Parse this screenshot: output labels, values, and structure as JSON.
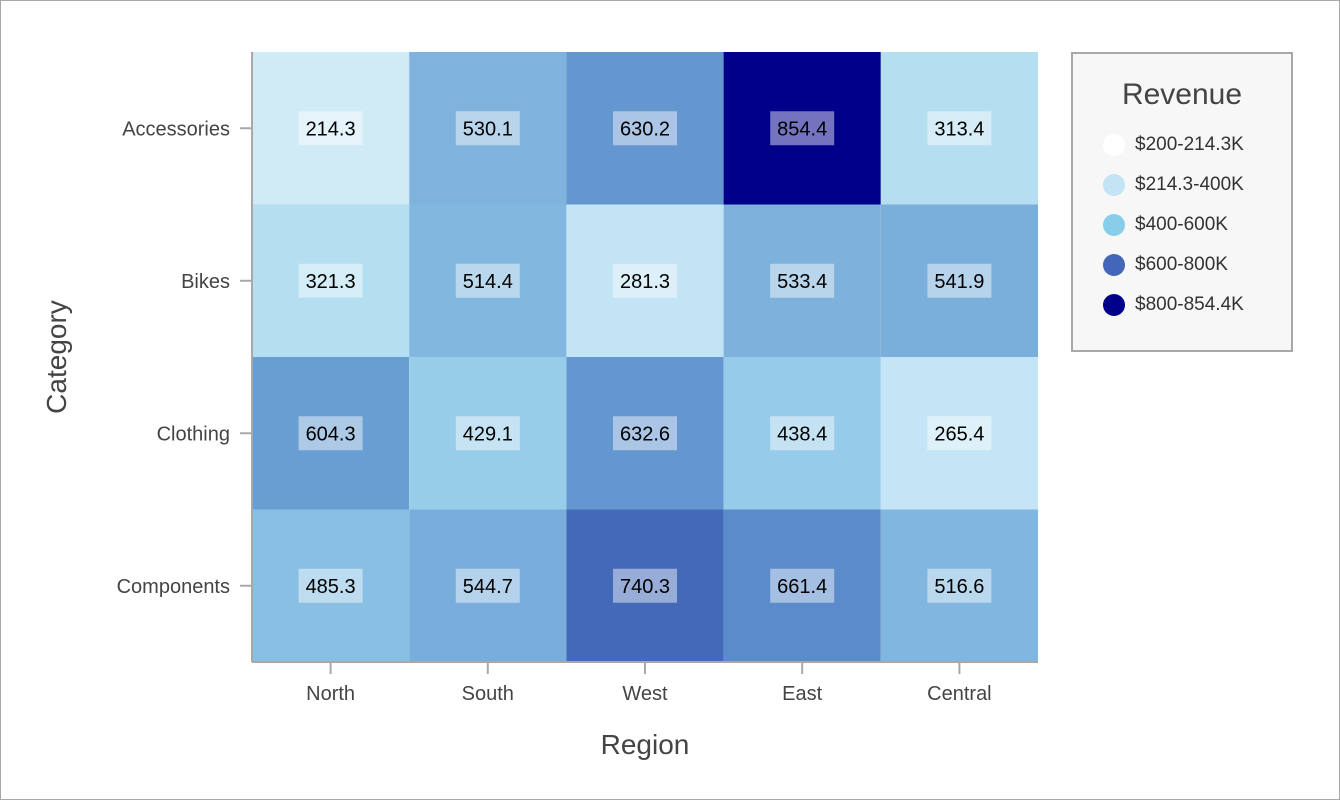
{
  "chart_data": {
    "type": "heatmap",
    "xlabel": "Region",
    "ylabel": "Category",
    "x_categories": [
      "North",
      "South",
      "West",
      "East",
      "Central"
    ],
    "y_categories": [
      "Accessories",
      "Bikes",
      "Clothing",
      "Components"
    ],
    "values": [
      [
        214.3,
        530.1,
        630.2,
        854.4,
        313.4
      ],
      [
        321.3,
        514.4,
        281.3,
        533.4,
        541.9
      ],
      [
        604.3,
        429.1,
        632.6,
        438.4,
        265.4
      ],
      [
        485.3,
        544.7,
        740.3,
        661.4,
        516.6
      ]
    ],
    "cell_colors": [
      [
        "#d0eaf6",
        "#7fb3dd",
        "#6496cf",
        "#00008b",
        "#b5dff0"
      ],
      [
        "#b3dff1",
        "#82b8df",
        "#c2e4f4",
        "#7eb2dc",
        "#7aafdc"
      ],
      [
        "#689ed2",
        "#98cde9",
        "#6496cf",
        "#96cbe9",
        "#c4e5f5"
      ],
      [
        "#88bfe3",
        "#79aedc",
        "#4469b9",
        "#5b8bca",
        "#80b6df"
      ]
    ],
    "legend": {
      "title": "Revenue",
      "placement": "right",
      "items": [
        {
          "label": "$200-214.3K",
          "color": "#ffffff"
        },
        {
          "label": "$214.3-400K",
          "color": "#c2e4f4"
        },
        {
          "label": "$400-600K",
          "color": "#87ceeb"
        },
        {
          "label": "$600-800K",
          "color": "#4466b8"
        },
        {
          "label": "$800-854.4K",
          "color": "#00008b"
        }
      ]
    }
  }
}
